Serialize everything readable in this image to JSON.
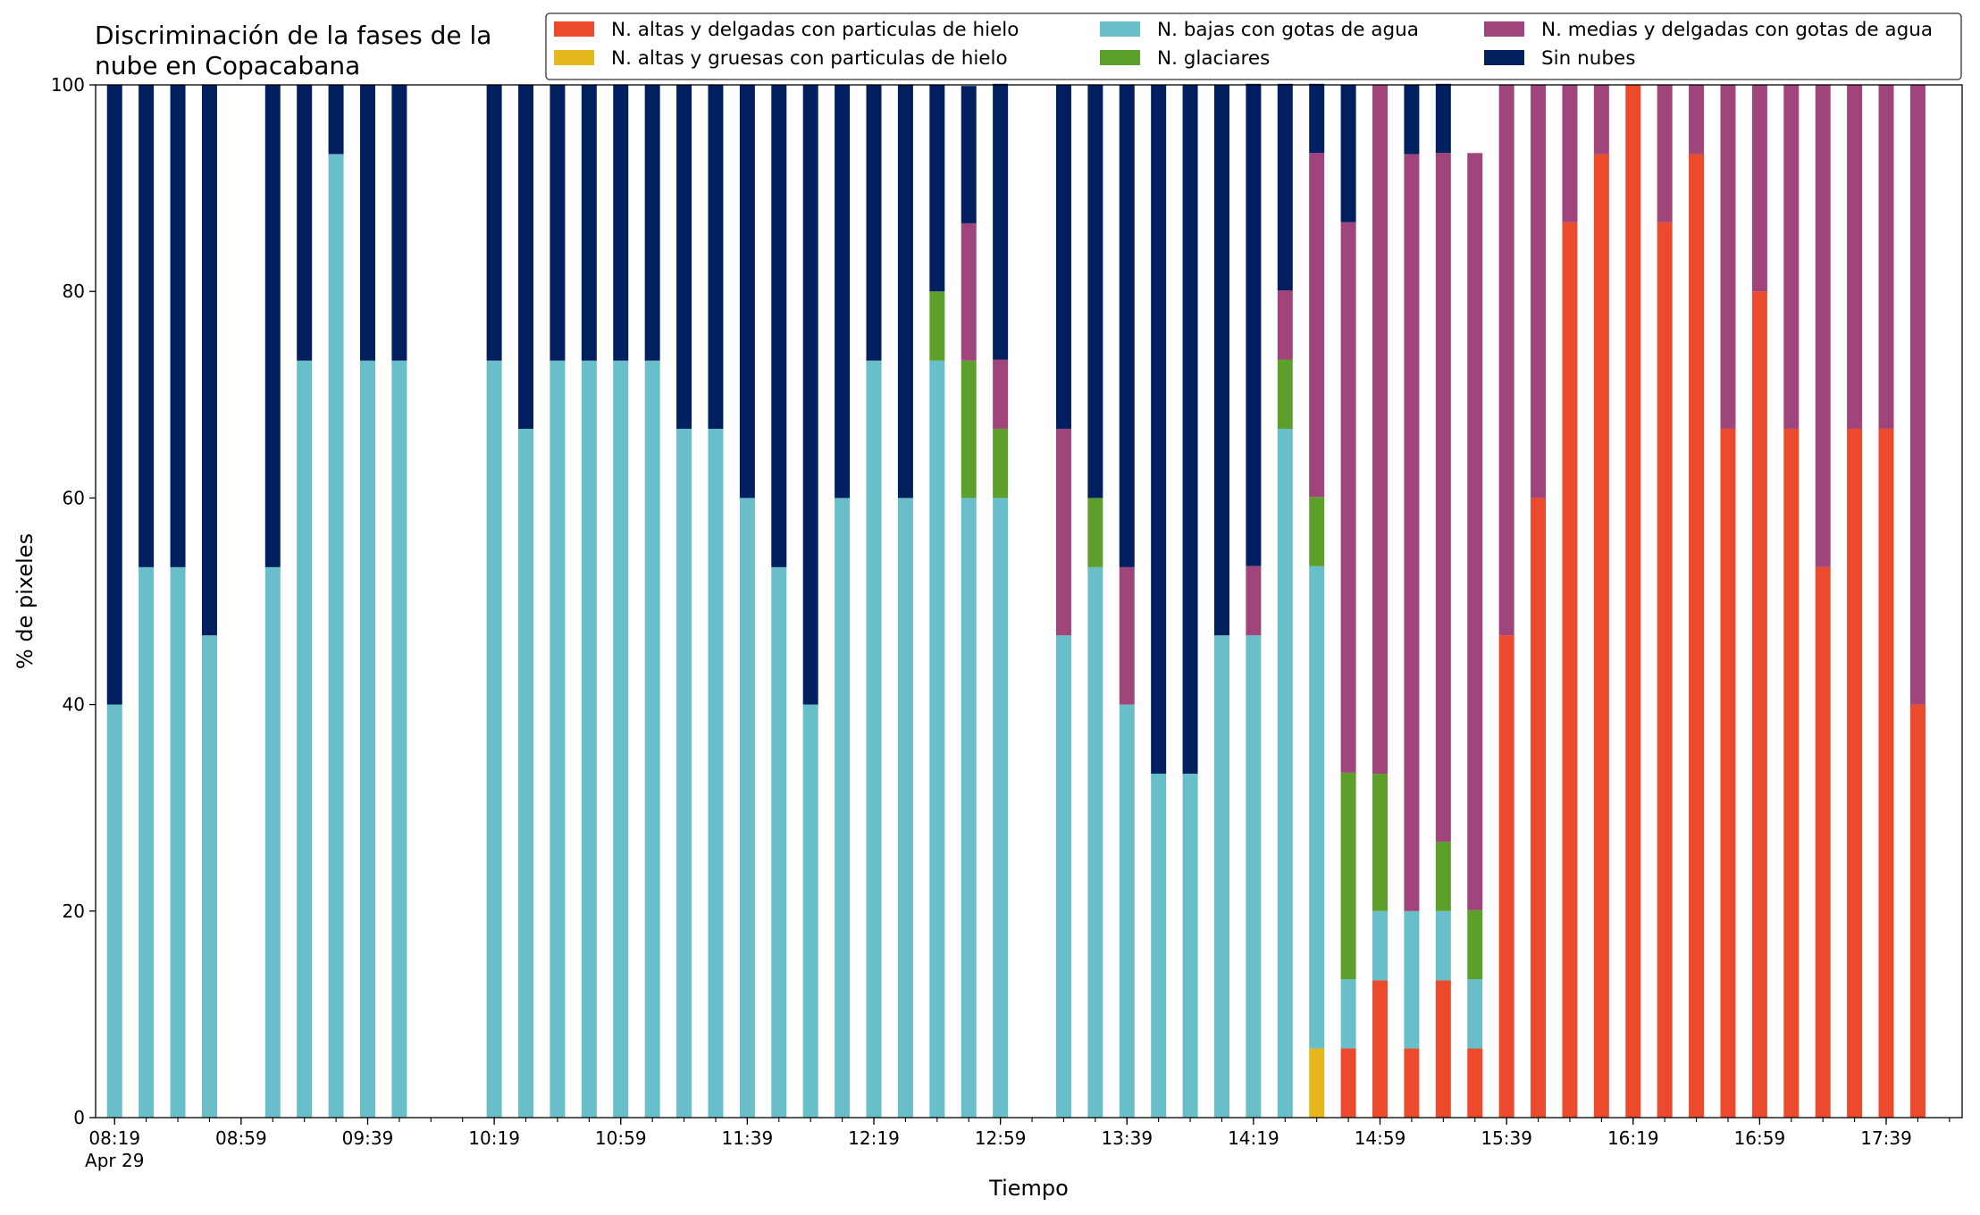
{
  "chart_data": {
    "type": "bar",
    "stacked": true,
    "title_lines": [
      "Discriminación de la fases de la",
      "nube en Copacabana"
    ],
    "xlabel": "Tiempo",
    "ylabel": "% de pixeles",
    "ylim": [
      0,
      100
    ],
    "yticks": [
      0,
      20,
      40,
      60,
      80,
      100
    ],
    "grid": false,
    "legend_position": "top-right",
    "date_label": "Apr 29",
    "xlim": [
      "08:13",
      "18:03"
    ],
    "x_tick_labels": [
      "08:19",
      "08:59",
      "09:39",
      "10:19",
      "10:59",
      "11:39",
      "12:19",
      "12:59",
      "13:39",
      "14:19",
      "14:59",
      "15:39",
      "16:19",
      "16:59",
      "17:39"
    ],
    "x_minor_ticks": [
      "08:19",
      "08:29",
      "08:39",
      "08:49",
      "08:59",
      "09:09",
      "09:19",
      "09:29",
      "09:39",
      "09:49",
      "09:59",
      "10:09",
      "10:19",
      "10:29",
      "10:39",
      "10:49",
      "10:59",
      "11:09",
      "11:19",
      "11:29",
      "11:39",
      "11:49",
      "11:59",
      "12:09",
      "12:19",
      "12:29",
      "12:39",
      "12:49",
      "12:59",
      "13:09",
      "13:19",
      "13:29",
      "13:39",
      "13:49",
      "13:59",
      "14:09",
      "14:19",
      "14:29",
      "14:39",
      "14:49",
      "14:59",
      "15:09",
      "15:19",
      "15:29",
      "15:39",
      "15:49",
      "15:59",
      "16:09",
      "16:19",
      "16:29",
      "16:39",
      "16:49",
      "16:59",
      "17:09",
      "17:19",
      "17:29",
      "17:39",
      "17:49",
      "17:59"
    ],
    "times": [
      "08:19",
      "08:29",
      "08:39",
      "08:49",
      "09:09",
      "09:19",
      "09:29",
      "09:39",
      "09:49",
      "10:19",
      "10:29",
      "10:39",
      "10:49",
      "10:59",
      "11:09",
      "11:19",
      "11:29",
      "11:39",
      "11:49",
      "11:59",
      "12:09",
      "12:19",
      "12:29",
      "12:39",
      "12:49",
      "12:59",
      "13:19",
      "13:29",
      "13:39",
      "13:49",
      "13:59",
      "14:09",
      "14:19",
      "14:29",
      "14:39",
      "14:49",
      "14:59",
      "15:09",
      "15:19",
      "15:29",
      "15:39",
      "15:49",
      "15:59",
      "16:09",
      "16:19",
      "16:29",
      "16:39",
      "16:49",
      "16:59",
      "17:09",
      "17:19",
      "17:29",
      "17:39",
      "17:49"
    ],
    "series": [
      {
        "name": "N. altas y delgadas con particulas de hielo",
        "color": "#eb4a2c",
        "values": [
          0,
          0,
          0,
          0,
          0,
          0,
          0,
          0,
          0,
          0,
          0,
          0,
          0,
          0,
          0,
          0,
          0,
          0,
          0,
          0,
          0,
          0,
          0,
          0,
          0,
          0,
          0,
          0,
          0,
          0,
          0,
          0,
          0,
          0,
          0,
          6.7,
          13.3,
          6.7,
          13.3,
          6.7,
          46.7,
          60,
          86.7,
          93.3,
          100,
          86.7,
          93.3,
          66.7,
          80,
          66.7,
          53.3,
          66.7,
          66.7,
          40
        ]
      },
      {
        "name": "N. altas y gruesas con particulas de hielo",
        "color": "#e5b81b",
        "values": [
          0,
          0,
          0,
          0,
          0,
          0,
          0,
          0,
          0,
          0,
          0,
          0,
          0,
          0,
          0,
          0,
          0,
          0,
          0,
          0,
          0,
          0,
          0,
          0,
          0,
          0,
          0,
          0,
          0,
          0,
          0,
          0,
          0,
          0,
          6.7,
          0,
          0,
          0,
          0,
          0,
          0,
          0,
          0,
          0,
          0,
          0,
          0,
          0,
          0,
          0,
          0,
          0,
          0,
          0
        ]
      },
      {
        "name": "N. bajas con gotas de agua",
        "color": "#68bfc9",
        "values": [
          40,
          53.3,
          53.3,
          46.7,
          53.3,
          73.3,
          93.3,
          73.3,
          73.3,
          73.3,
          66.7,
          73.3,
          73.3,
          73.3,
          73.3,
          66.7,
          66.7,
          60,
          53.3,
          40,
          60,
          73.3,
          60,
          73.3,
          60,
          60,
          46.7,
          53.3,
          40,
          33.3,
          33.3,
          46.7,
          46.7,
          66.7,
          46.7,
          6.7,
          6.7,
          13.3,
          6.7,
          6.7,
          0,
          0,
          0,
          0,
          0,
          0,
          0,
          0,
          0,
          0,
          0,
          0,
          0,
          0
        ]
      },
      {
        "name": "N. glaciares",
        "color": "#5d9f2b",
        "values": [
          0,
          0,
          0,
          0,
          0,
          0,
          0,
          0,
          0,
          0,
          0,
          0,
          0,
          0,
          0,
          0,
          0,
          0,
          0,
          0,
          0,
          0,
          0,
          6.7,
          13.3,
          6.7,
          0,
          6.7,
          0,
          0,
          0,
          0,
          0,
          6.7,
          6.7,
          20,
          13.3,
          0,
          6.7,
          6.7,
          0,
          0,
          0,
          0,
          0,
          0,
          0,
          0,
          0,
          0,
          0,
          0,
          0,
          0
        ]
      },
      {
        "name": "N. medias y delgadas con gotas de agua",
        "color": "#a0457b",
        "values": [
          0,
          0,
          0,
          0,
          0,
          0,
          0,
          0,
          0,
          0,
          0,
          0,
          0,
          0,
          0,
          0,
          0,
          0,
          0,
          0,
          0,
          0,
          0,
          0,
          13.3,
          6.7,
          20,
          0,
          13.3,
          0,
          0,
          0,
          6.7,
          6.7,
          33.3,
          53.3,
          66.7,
          73.3,
          66.7,
          73.3,
          53.3,
          40,
          13.3,
          6.7,
          0,
          13.3,
          6.7,
          33.3,
          20,
          33.3,
          46.7,
          33.3,
          33.3,
          60
        ]
      },
      {
        "name": "Sin nubes",
        "color": "#02205f",
        "values": [
          60,
          46.7,
          46.7,
          53.3,
          46.7,
          26.7,
          6.7,
          26.7,
          26.7,
          26.7,
          33.3,
          26.7,
          26.7,
          26.7,
          26.7,
          33.3,
          33.3,
          40,
          46.7,
          60,
          40,
          26.7,
          40,
          20,
          13.3,
          26.7,
          33.3,
          40,
          46.7,
          66.7,
          66.7,
          53.3,
          46.7,
          20,
          6.7,
          13.3,
          0,
          6.7,
          6.7,
          0,
          0,
          0,
          0,
          0,
          0,
          0,
          0,
          0,
          0,
          0,
          0,
          0,
          0,
          0
        ]
      }
    ]
  }
}
